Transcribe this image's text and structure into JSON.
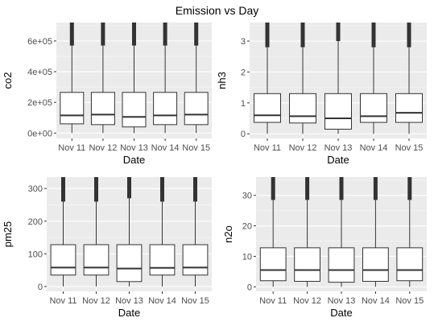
{
  "figure": {
    "title": "Emission vs Day"
  },
  "chart_data": [
    {
      "type": "box",
      "xlabel": "Date",
      "ylabel": "co2",
      "categories": [
        "Nov 11",
        "Nov 12",
        "Nov 13",
        "Nov 14",
        "Nov 15"
      ],
      "ylim": [
        -35000,
        720000
      ],
      "y_ticks": [
        0,
        200000,
        400000,
        600000
      ],
      "y_tick_labels": [
        "0e+00",
        "2e+05",
        "4e+05",
        "6e+05"
      ],
      "grid": true,
      "boxes": [
        {
          "q1": 60000,
          "median": 115000,
          "q3": 265000,
          "whisker_low": 0,
          "whisker_high": 570000,
          "outliers_to": 720000
        },
        {
          "q1": 55000,
          "median": 120000,
          "q3": 265000,
          "whisker_low": 0,
          "whisker_high": 570000,
          "outliers_to": 720000
        },
        {
          "q1": 40000,
          "median": 105000,
          "q3": 265000,
          "whisker_low": 0,
          "whisker_high": 570000,
          "outliers_to": 720000
        },
        {
          "q1": 55000,
          "median": 115000,
          "q3": 265000,
          "whisker_low": 0,
          "whisker_high": 570000,
          "outliers_to": 720000
        },
        {
          "q1": 55000,
          "median": 120000,
          "q3": 265000,
          "whisker_low": 0,
          "whisker_high": 570000,
          "outliers_to": 720000
        }
      ]
    },
    {
      "type": "box",
      "xlabel": "Date",
      "ylabel": "nh3",
      "categories": [
        "Nov 11",
        "Nov 12",
        "Nov 13",
        "Nov 14",
        "Nov 15"
      ],
      "ylim": [
        -0.15,
        3.6
      ],
      "y_ticks": [
        0,
        1,
        2,
        3
      ],
      "y_tick_labels": [
        "0",
        "1",
        "2",
        "3"
      ],
      "grid": true,
      "boxes": [
        {
          "q1": 0.37,
          "median": 0.6,
          "q3": 1.3,
          "whisker_low": 0,
          "whisker_high": 2.8,
          "outliers_to": 3.6
        },
        {
          "q1": 0.35,
          "median": 0.57,
          "q3": 1.3,
          "whisker_low": 0,
          "whisker_high": 2.8,
          "outliers_to": 3.6
        },
        {
          "q1": 0.15,
          "median": 0.5,
          "q3": 1.3,
          "whisker_low": 0,
          "whisker_high": 3.0,
          "outliers_to": 3.6
        },
        {
          "q1": 0.37,
          "median": 0.57,
          "q3": 1.3,
          "whisker_low": 0,
          "whisker_high": 2.8,
          "outliers_to": 3.6
        },
        {
          "q1": 0.37,
          "median": 0.68,
          "q3": 1.3,
          "whisker_low": 0,
          "whisker_high": 2.8,
          "outliers_to": 3.6
        }
      ]
    },
    {
      "type": "box",
      "xlabel": "Date",
      "ylabel": "pm25",
      "categories": [
        "Nov 11",
        "Nov 12",
        "Nov 13",
        "Nov 14",
        "Nov 15"
      ],
      "ylim": [
        -15,
        335
      ],
      "y_ticks": [
        0,
        100,
        200,
        300
      ],
      "y_tick_labels": [
        "0",
        "100",
        "200",
        "300"
      ],
      "grid": true,
      "boxes": [
        {
          "q1": 35,
          "median": 58,
          "q3": 128,
          "whisker_low": 0,
          "whisker_high": 260,
          "outliers_to": 335
        },
        {
          "q1": 35,
          "median": 58,
          "q3": 128,
          "whisker_low": 0,
          "whisker_high": 260,
          "outliers_to": 335
        },
        {
          "q1": 15,
          "median": 55,
          "q3": 128,
          "whisker_low": 0,
          "whisker_high": 270,
          "outliers_to": 335
        },
        {
          "q1": 35,
          "median": 57,
          "q3": 128,
          "whisker_low": 0,
          "whisker_high": 260,
          "outliers_to": 335
        },
        {
          "q1": 35,
          "median": 58,
          "q3": 128,
          "whisker_low": 0,
          "whisker_high": 260,
          "outliers_to": 335
        }
      ]
    },
    {
      "type": "box",
      "xlabel": "Date",
      "ylabel": "n2o",
      "categories": [
        "Nov 11",
        "Nov 12",
        "Nov 13",
        "Nov 14",
        "Nov 15"
      ],
      "ylim": [
        -1.5,
        36
      ],
      "y_ticks": [
        0,
        10,
        20,
        30
      ],
      "y_tick_labels": [
        "0",
        "10",
        "20",
        "30"
      ],
      "grid": true,
      "boxes": [
        {
          "q1": 2,
          "median": 5.5,
          "q3": 12.8,
          "whisker_low": 0,
          "whisker_high": 28.5,
          "outliers_to": 36
        },
        {
          "q1": 1.8,
          "median": 5.5,
          "q3": 12.8,
          "whisker_low": 0,
          "whisker_high": 28.5,
          "outliers_to": 36
        },
        {
          "q1": 1.5,
          "median": 5.5,
          "q3": 12.8,
          "whisker_low": 0,
          "whisker_high": 28.5,
          "outliers_to": 36
        },
        {
          "q1": 1.8,
          "median": 5.5,
          "q3": 12.8,
          "whisker_low": 0,
          "whisker_high": 28.5,
          "outliers_to": 36
        },
        {
          "q1": 2,
          "median": 5.5,
          "q3": 12.8,
          "whisker_low": 0,
          "whisker_high": 28.5,
          "outliers_to": 36
        }
      ]
    }
  ]
}
